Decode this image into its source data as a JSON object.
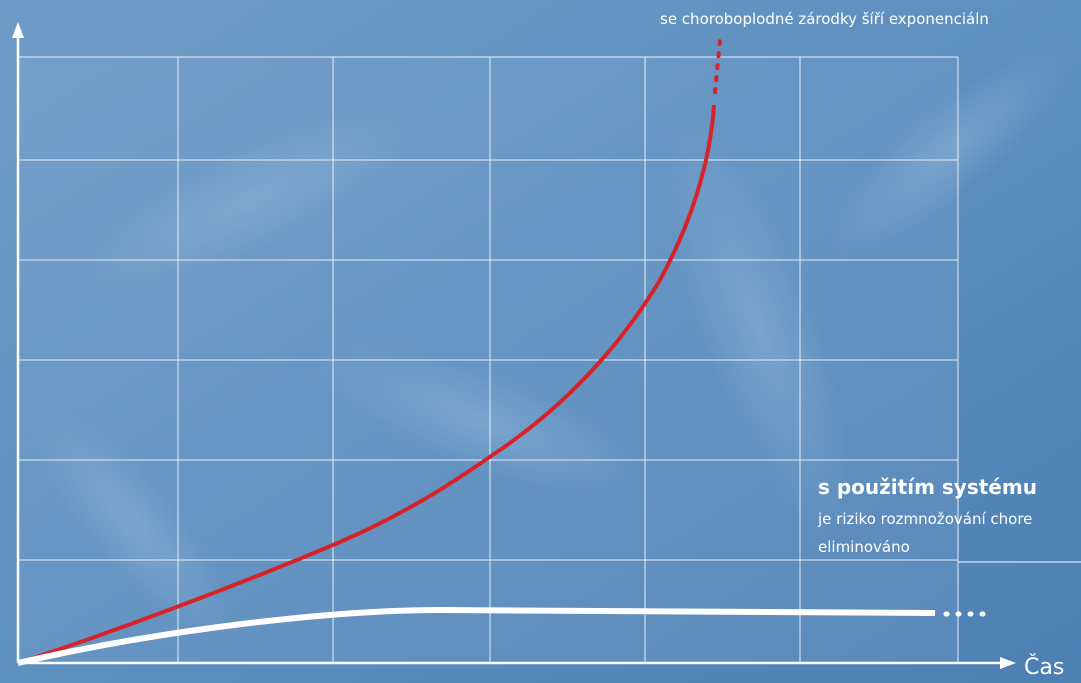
{
  "annotations": {
    "exponential": "se choroboplodné zárodky šíří exponenciáln",
    "with_system_title": "s použitím systému",
    "with_system_line1": "je riziko rozmnožování chore",
    "with_system_line2": "eliminováno"
  },
  "axes": {
    "x_label": "Čas"
  }
}
